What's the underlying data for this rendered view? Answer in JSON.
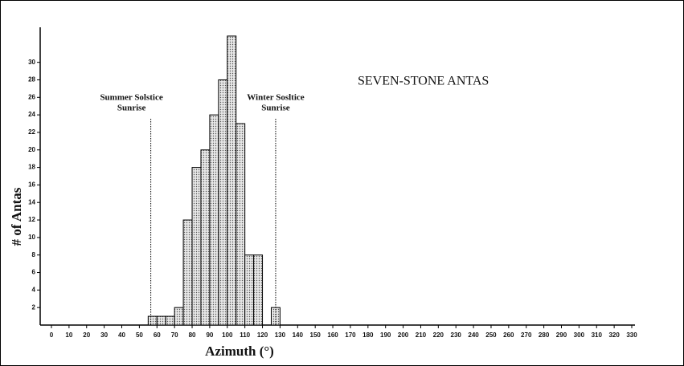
{
  "chart_data": {
    "type": "histogram",
    "title": "SEVEN-STONE ANTAS",
    "x_label": "Azimuth (°)",
    "y_label": "# of Antas",
    "bins": [
      55,
      60,
      65,
      70,
      75,
      80,
      85,
      90,
      95,
      100,
      105,
      110,
      115,
      120,
      125,
      130
    ],
    "values": [
      1,
      1,
      1,
      2,
      12,
      18,
      20,
      24,
      28,
      33,
      23,
      8,
      8,
      0,
      2
    ],
    "color": "#d9d9d9",
    "xlim": [
      0,
      330
    ],
    "xticks": [
      0,
      10,
      20,
      30,
      40,
      50,
      60,
      70,
      80,
      90,
      100,
      110,
      120,
      130,
      140,
      150,
      160,
      170,
      180,
      190,
      200,
      210,
      220,
      230,
      240,
      250,
      260,
      270,
      280,
      290,
      300,
      310,
      320,
      330
    ],
    "ylim": [
      0,
      34
    ],
    "yticks": [
      2,
      4,
      6,
      8,
      10,
      12,
      14,
      16,
      18,
      20,
      22,
      24,
      26,
      28,
      30
    ],
    "grid": false,
    "annotations": [
      {
        "lines": [
          "Summer Solstice",
          "Sunrise"
        ],
        "x": 56.5
      },
      {
        "lines": [
          "Winter Sosltice",
          "Sunrise"
        ],
        "x": 127.5
      }
    ]
  }
}
